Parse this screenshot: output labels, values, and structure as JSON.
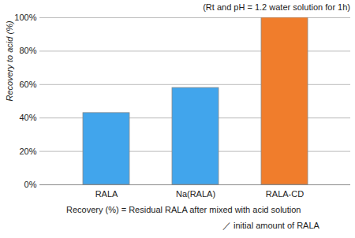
{
  "chart_data": {
    "type": "bar",
    "subtitle": "(Rt and pH = 1.2 water solution for 1h)",
    "y_label": "Recovery to acid (%)",
    "categories": [
      "RALA",
      "Na(RALA)",
      "RALA-CD"
    ],
    "values": [
      43,
      58,
      100
    ],
    "colors": [
      "#41a5ec",
      "#41a5ec",
      "#f07d2c"
    ],
    "ylim": [
      0,
      100
    ],
    "yticks": [
      {
        "value": 0,
        "label": "0%"
      },
      {
        "value": 20,
        "label": "20%"
      },
      {
        "value": 40,
        "label": "40%"
      },
      {
        "value": 60,
        "label": "60%"
      },
      {
        "value": 80,
        "label": "80%"
      },
      {
        "value": 100,
        "label": "100%"
      }
    ],
    "grid": true,
    "annotations": [
      "Recovery (%) = Residual RALA after mixed with acid solution",
      "／ initial amount of RALA"
    ]
  }
}
